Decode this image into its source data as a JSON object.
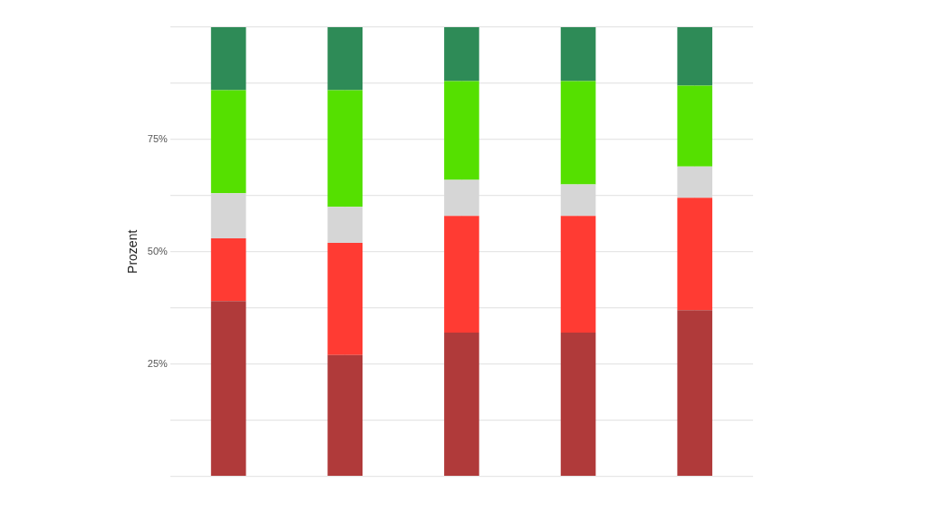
{
  "chart_data": {
    "type": "bar",
    "stacked": true,
    "ylabel": "Prozent",
    "categories": [
      null,
      null,
      null,
      null,
      null
    ],
    "series": [
      {
        "color": "#b03a3a",
        "values": [
          39,
          27,
          32,
          32,
          37
        ]
      },
      {
        "color": "#ff3b33",
        "values": [
          14,
          25,
          26,
          26,
          25
        ]
      },
      {
        "color": "#d6d6d6",
        "values": [
          10,
          8,
          8,
          7,
          7
        ]
      },
      {
        "color": "#55e000",
        "values": [
          23,
          26,
          22,
          23,
          18
        ]
      },
      {
        "color": "#2e8b57",
        "values": [
          14,
          14,
          12,
          12,
          13
        ]
      }
    ],
    "ylim": [
      0,
      100
    ],
    "yticks": [
      {
        "value": 0,
        "label": null
      },
      {
        "value": 12.5,
        "label": null
      },
      {
        "value": 25,
        "label": "25%"
      },
      {
        "value": 37.5,
        "label": null
      },
      {
        "value": 50,
        "label": "50%"
      },
      {
        "value": 62.5,
        "label": null
      },
      {
        "value": 75,
        "label": "75%"
      },
      {
        "value": 87.5,
        "label": null
      },
      {
        "value": 100,
        "label": null
      }
    ],
    "grid": true,
    "legend": false
  }
}
